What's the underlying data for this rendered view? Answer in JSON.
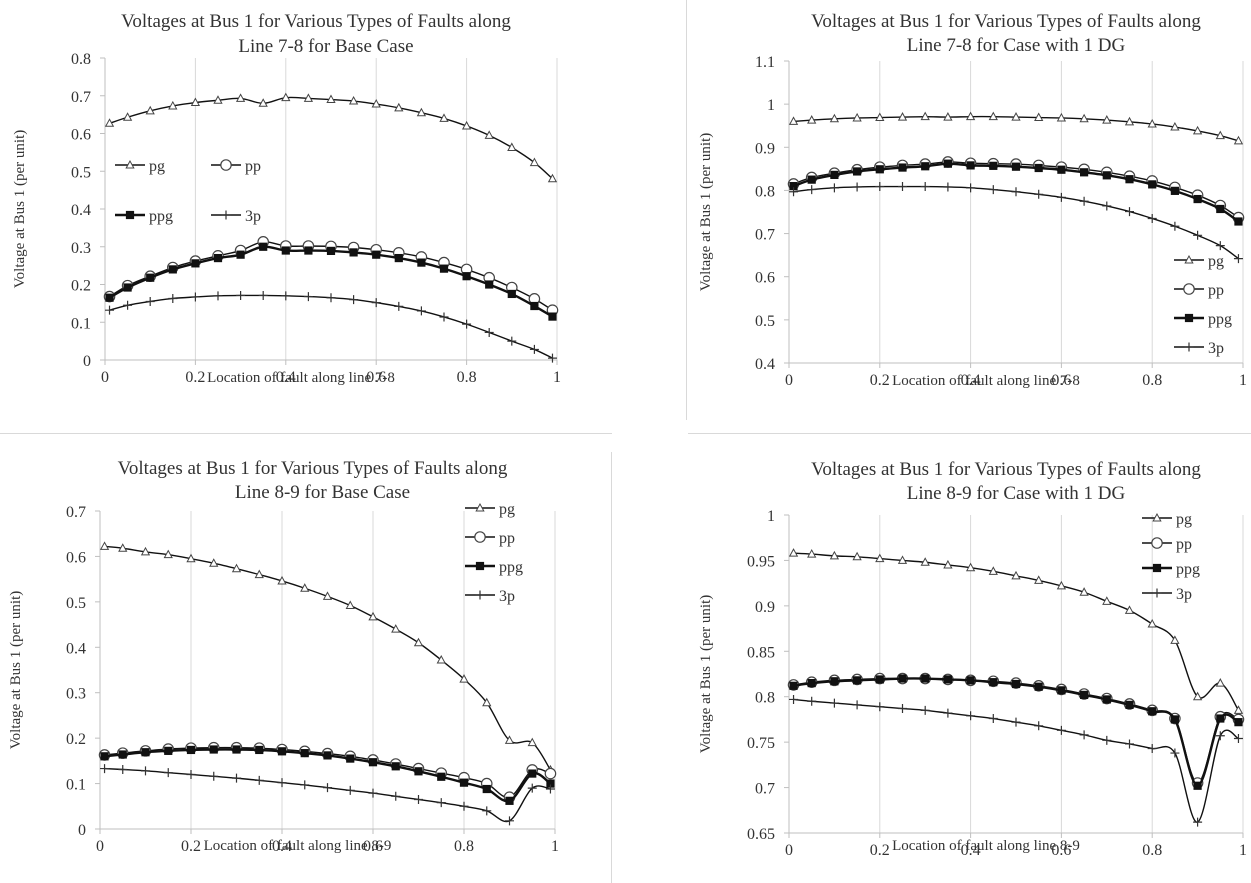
{
  "chart_data": [
    {
      "type": "line",
      "title": [
        "Voltages at Bus 1 for Various Types of  Faults along",
        "Line 7-8 for Base Case"
      ],
      "xlabel": "Location of fault along line 7-8",
      "ylabel": "Voltage at Bus 1 (per unit)",
      "xlim": [
        0,
        1
      ],
      "ylim": [
        0,
        0.8
      ],
      "xticks": [
        0,
        0.2,
        0.4,
        0.6,
        0.8,
        1
      ],
      "xticklabels": [
        "0",
        "0.2",
        "0.4",
        "0.6",
        "0.8",
        "1"
      ],
      "yticks": [
        0,
        0.1,
        0.2,
        0.3,
        0.4,
        0.5,
        0.6,
        0.7,
        0.8
      ],
      "yticklabels": [
        "0",
        "0.1",
        "0.2",
        "0.3",
        "0.4",
        "0.5",
        "0.6",
        "0.7",
        "0.8"
      ],
      "grid": "vertical",
      "legend": "upper-left-inside, two columns",
      "x": [
        0.01,
        0.05,
        0.1,
        0.15,
        0.2,
        0.25,
        0.3,
        0.35,
        0.4,
        0.45,
        0.5,
        0.55,
        0.6,
        0.65,
        0.7,
        0.75,
        0.8,
        0.85,
        0.9,
        0.95,
        0.99
      ],
      "series": [
        {
          "name": "pg",
          "marker": "triangle",
          "values": [
            0.627,
            0.643,
            0.66,
            0.673,
            0.682,
            0.688,
            0.693,
            0.68,
            0.695,
            0.693,
            0.69,
            0.686,
            0.678,
            0.668,
            0.655,
            0.64,
            0.62,
            0.595,
            0.563,
            0.523,
            0.48
          ]
        },
        {
          "name": "pp",
          "marker": "circle",
          "values": [
            0.168,
            0.197,
            0.222,
            0.245,
            0.262,
            0.276,
            0.29,
            0.313,
            0.302,
            0.302,
            0.301,
            0.298,
            0.292,
            0.284,
            0.273,
            0.258,
            0.24,
            0.218,
            0.192,
            0.162,
            0.132
          ]
        },
        {
          "name": "ppg",
          "marker": "square",
          "values": [
            0.165,
            0.192,
            0.218,
            0.24,
            0.256,
            0.27,
            0.279,
            0.3,
            0.29,
            0.29,
            0.289,
            0.285,
            0.279,
            0.27,
            0.258,
            0.242,
            0.222,
            0.2,
            0.175,
            0.143,
            0.115
          ]
        },
        {
          "name": "3p",
          "marker": "plus",
          "values": [
            0.132,
            0.145,
            0.155,
            0.163,
            0.167,
            0.17,
            0.171,
            0.171,
            0.17,
            0.168,
            0.165,
            0.16,
            0.152,
            0.142,
            0.13,
            0.114,
            0.095,
            0.073,
            0.05,
            0.028,
            0.005
          ]
        }
      ]
    },
    {
      "type": "line",
      "title": [
        "Voltages at Bus 1 for Various Types of  Faults along",
        "Line 7-8 for Case  with 1 DG"
      ],
      "xlabel": "Location of fault along line 7-8",
      "ylabel": "Voltage at Bus 1 (per unit)",
      "xlim": [
        0,
        1
      ],
      "ylim": [
        0.4,
        1.1
      ],
      "xticks": [
        0,
        0.2,
        0.4,
        0.6,
        0.8,
        1
      ],
      "xticklabels": [
        "0",
        "0.2",
        "0.4",
        "0.6",
        "0.8",
        "1"
      ],
      "yticks": [
        0.4,
        0.5,
        0.6,
        0.7,
        0.8,
        0.9,
        1.0,
        1.1
      ],
      "yticklabels": [
        "0.4",
        "0.5",
        "0.6",
        "0.7",
        "0.8",
        "0.9",
        "1",
        "1.1"
      ],
      "grid": "vertical",
      "legend": "lower-right-inside, one column",
      "x": [
        0.01,
        0.05,
        0.1,
        0.15,
        0.2,
        0.25,
        0.3,
        0.35,
        0.4,
        0.45,
        0.5,
        0.55,
        0.6,
        0.65,
        0.7,
        0.75,
        0.8,
        0.85,
        0.9,
        0.95,
        0.99
      ],
      "series": [
        {
          "name": "pg",
          "marker": "triangle",
          "values": [
            0.96,
            0.963,
            0.966,
            0.968,
            0.969,
            0.97,
            0.971,
            0.97,
            0.971,
            0.971,
            0.97,
            0.969,
            0.968,
            0.966,
            0.963,
            0.959,
            0.954,
            0.947,
            0.938,
            0.927,
            0.915
          ]
        },
        {
          "name": "pp",
          "marker": "circle",
          "values": [
            0.815,
            0.83,
            0.84,
            0.848,
            0.854,
            0.858,
            0.861,
            0.866,
            0.863,
            0.862,
            0.861,
            0.858,
            0.854,
            0.849,
            0.842,
            0.833,
            0.822,
            0.807,
            0.789,
            0.765,
            0.737
          ]
        },
        {
          "name": "ppg",
          "marker": "square",
          "values": [
            0.81,
            0.825,
            0.836,
            0.844,
            0.849,
            0.853,
            0.856,
            0.862,
            0.858,
            0.857,
            0.855,
            0.852,
            0.848,
            0.842,
            0.835,
            0.826,
            0.814,
            0.799,
            0.78,
            0.757,
            0.728
          ]
        },
        {
          "name": "3p",
          "marker": "plus",
          "values": [
            0.797,
            0.802,
            0.806,
            0.808,
            0.809,
            0.809,
            0.809,
            0.808,
            0.806,
            0.802,
            0.797,
            0.791,
            0.784,
            0.775,
            0.764,
            0.751,
            0.735,
            0.717,
            0.696,
            0.672,
            0.642
          ]
        }
      ]
    },
    {
      "type": "line",
      "title": [
        "Voltages at Bus 1 for Various Types of  Faults along",
        "Line 8-9 for Base Case"
      ],
      "xlabel": "Location of fault along line 8-9",
      "ylabel": "Voltage at Bus 1 (per unit)",
      "xlim": [
        0,
        1
      ],
      "ylim": [
        0,
        0.7
      ],
      "xticks": [
        0,
        0.2,
        0.4,
        0.6,
        0.8,
        1
      ],
      "xticklabels": [
        "0",
        "0.2",
        "0.4",
        "0.6",
        "0.8",
        "1"
      ],
      "yticks": [
        0,
        0.1,
        0.2,
        0.3,
        0.4,
        0.5,
        0.6,
        0.7
      ],
      "yticklabels": [
        "0",
        "0.1",
        "0.2",
        "0.3",
        "0.4",
        "0.5",
        "0.6",
        "0.7"
      ],
      "grid": "vertical",
      "legend": "upper-right-inside, one column",
      "x": [
        0.01,
        0.05,
        0.1,
        0.15,
        0.2,
        0.25,
        0.3,
        0.35,
        0.4,
        0.45,
        0.5,
        0.55,
        0.6,
        0.65,
        0.7,
        0.75,
        0.8,
        0.85,
        0.9,
        0.95,
        0.99
      ],
      "series": [
        {
          "name": "pg",
          "marker": "triangle",
          "values": [
            0.622,
            0.618,
            0.61,
            0.604,
            0.595,
            0.585,
            0.573,
            0.56,
            0.546,
            0.53,
            0.512,
            0.492,
            0.467,
            0.44,
            0.41,
            0.372,
            0.33,
            0.278,
            0.195,
            0.19,
            0.13
          ]
        },
        {
          "name": "pp",
          "marker": "circle",
          "values": [
            0.163,
            0.167,
            0.172,
            0.176,
            0.178,
            0.179,
            0.179,
            0.178,
            0.175,
            0.171,
            0.166,
            0.16,
            0.152,
            0.143,
            0.133,
            0.123,
            0.113,
            0.1,
            0.07,
            0.13,
            0.122
          ]
        },
        {
          "name": "ppg",
          "marker": "square",
          "values": [
            0.16,
            0.164,
            0.169,
            0.172,
            0.174,
            0.175,
            0.175,
            0.174,
            0.171,
            0.167,
            0.162,
            0.155,
            0.147,
            0.138,
            0.127,
            0.115,
            0.102,
            0.088,
            0.062,
            0.122,
            0.1
          ]
        },
        {
          "name": "3p",
          "marker": "plus",
          "values": [
            0.133,
            0.131,
            0.128,
            0.124,
            0.12,
            0.116,
            0.112,
            0.107,
            0.102,
            0.097,
            0.091,
            0.085,
            0.079,
            0.072,
            0.065,
            0.058,
            0.05,
            0.04,
            0.018,
            0.09,
            0.088
          ]
        }
      ]
    },
    {
      "type": "line",
      "title": [
        "Voltages at Bus 1 for Various Types of  Faults along",
        "Line 8-9 for Case  with 1 DG"
      ],
      "xlabel": "Location of fault along line 8-9",
      "ylabel": "Voltage at Bus 1 (per unit)",
      "xlim": [
        0,
        1
      ],
      "ylim": [
        0.65,
        1
      ],
      "xticks": [
        0,
        0.2,
        0.4,
        0.6,
        0.8,
        1
      ],
      "xticklabels": [
        "0",
        "0.2",
        "0.4",
        "0.6",
        "0.8",
        "1"
      ],
      "yticks": [
        0.65,
        0.7,
        0.75,
        0.8,
        0.85,
        0.9,
        0.95,
        1.0
      ],
      "yticklabels": [
        "0.65",
        "0.7",
        "0.75",
        "0.8",
        "0.85",
        "0.9",
        "0.95",
        "1"
      ],
      "grid": "vertical",
      "legend": "upper-right-inside, one column",
      "x": [
        0.01,
        0.05,
        0.1,
        0.15,
        0.2,
        0.25,
        0.3,
        0.35,
        0.4,
        0.45,
        0.5,
        0.55,
        0.6,
        0.65,
        0.7,
        0.75,
        0.8,
        0.85,
        0.9,
        0.95,
        0.99
      ],
      "series": [
        {
          "name": "pg",
          "marker": "triangle",
          "values": [
            0.958,
            0.957,
            0.955,
            0.954,
            0.952,
            0.95,
            0.948,
            0.945,
            0.942,
            0.938,
            0.933,
            0.928,
            0.922,
            0.915,
            0.905,
            0.895,
            0.88,
            0.862,
            0.8,
            0.815,
            0.785
          ]
        },
        {
          "name": "pp",
          "marker": "circle",
          "values": [
            0.813,
            0.816,
            0.818,
            0.819,
            0.82,
            0.82,
            0.82,
            0.819,
            0.818,
            0.817,
            0.815,
            0.812,
            0.808,
            0.803,
            0.798,
            0.792,
            0.785,
            0.776,
            0.705,
            0.778,
            0.775
          ]
        },
        {
          "name": "ppg",
          "marker": "square",
          "values": [
            0.812,
            0.815,
            0.817,
            0.818,
            0.819,
            0.82,
            0.82,
            0.819,
            0.818,
            0.816,
            0.814,
            0.811,
            0.807,
            0.802,
            0.797,
            0.791,
            0.784,
            0.775,
            0.702,
            0.776,
            0.772
          ]
        },
        {
          "name": "3p",
          "marker": "plus",
          "values": [
            0.797,
            0.795,
            0.793,
            0.791,
            0.789,
            0.787,
            0.785,
            0.782,
            0.779,
            0.776,
            0.772,
            0.768,
            0.763,
            0.758,
            0.752,
            0.748,
            0.743,
            0.738,
            0.662,
            0.757,
            0.754
          ]
        }
      ]
    }
  ]
}
